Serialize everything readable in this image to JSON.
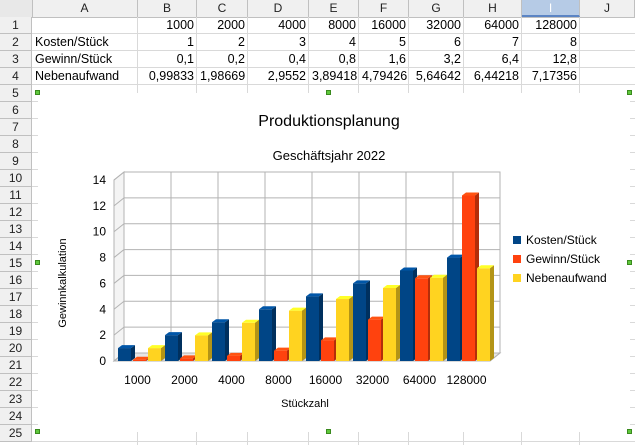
{
  "columns": [
    "A",
    "B",
    "C",
    "D",
    "E",
    "F",
    "G",
    "H",
    "I",
    "J"
  ],
  "selected_column": "I",
  "rows": [
    "1",
    "2",
    "3",
    "4",
    "5",
    "6",
    "7",
    "8",
    "9",
    "10",
    "11",
    "12",
    "13",
    "14",
    "15",
    "16",
    "17",
    "18",
    "19",
    "20",
    "21",
    "22",
    "23",
    "24",
    "25"
  ],
  "cells": [
    [
      "",
      "1000",
      "2000",
      "4000",
      "8000",
      "16000",
      "32000",
      "64000",
      "128000"
    ],
    [
      "Kosten/Stück",
      "1",
      "2",
      "3",
      "4",
      "5",
      "6",
      "7",
      "8"
    ],
    [
      "Gewinn/Stück",
      "0,1",
      "0,2",
      "0,4",
      "0,8",
      "1,6",
      "3,2",
      "6,4",
      "12,8"
    ],
    [
      "Nebenaufwand",
      "0,99833",
      "1,98669",
      "2,9552",
      "3,89418",
      "4,79426",
      "5,64642",
      "6,44218",
      "7,17356"
    ]
  ],
  "chart_data": {
    "type": "bar",
    "title": "Produktionsplanung",
    "subtitle": "Geschäftsjahr 2022",
    "xlabel": "Stückzahl",
    "ylabel": "Gewinnkalkulation",
    "categories": [
      "1000",
      "2000",
      "4000",
      "8000",
      "16000",
      "32000",
      "64000",
      "128000"
    ],
    "ylim": [
      0,
      14
    ],
    "yticks": [
      "0",
      "2",
      "4",
      "6",
      "8",
      "10",
      "12",
      "14"
    ],
    "grid": true,
    "legend": "right",
    "series": [
      {
        "name": "Kosten/Stück",
        "color": "#004586",
        "values": [
          1,
          2,
          3,
          4,
          5,
          6,
          7,
          8
        ]
      },
      {
        "name": "Gewinn/Stück",
        "color": "#ff420e",
        "values": [
          0.1,
          0.2,
          0.4,
          0.8,
          1.6,
          3.2,
          6.4,
          12.8
        ]
      },
      {
        "name": "Nebenaufwand",
        "color": "#ffd320",
        "values": [
          0.99833,
          1.98669,
          2.9552,
          3.89418,
          4.79426,
          5.64642,
          6.44218,
          7.17356
        ]
      }
    ]
  }
}
